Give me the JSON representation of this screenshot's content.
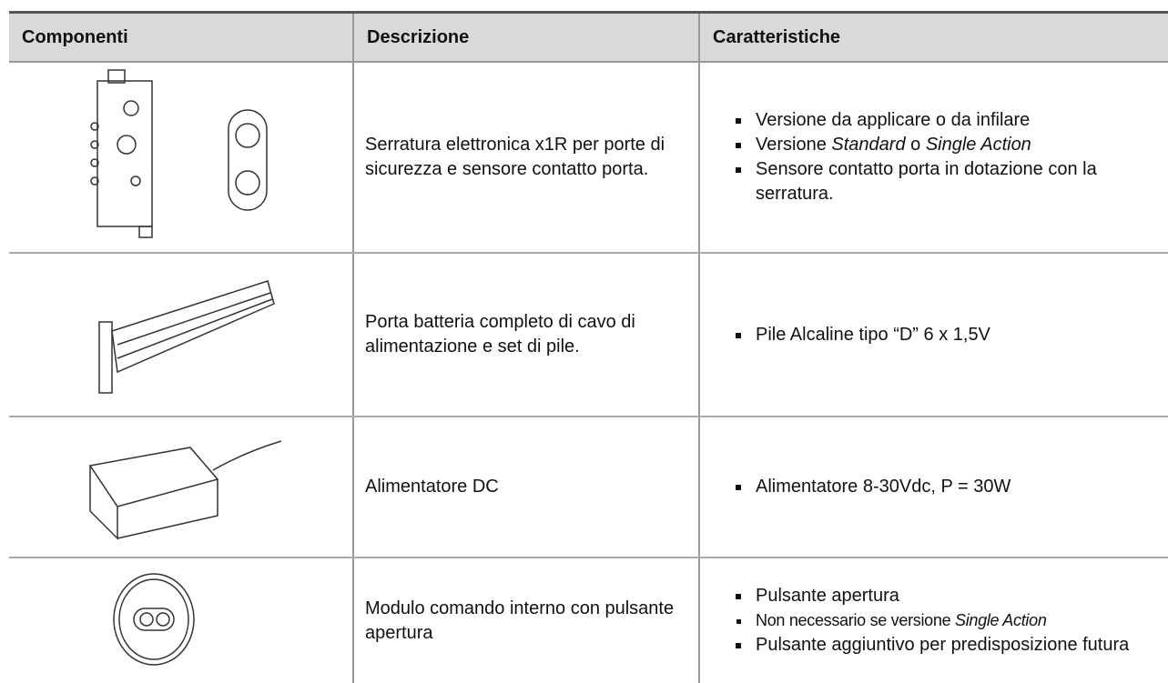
{
  "table": {
    "header": [
      "Componenti",
      "Descrizione",
      "Caratteristiche"
    ],
    "rows": [
      {
        "description": "Serratura elettronica x1R per porte di sicurezza e sensore contatto porta.",
        "features": [
          [
            "Versione da applicare o da infilare"
          ],
          [
            "Versione ",
            "Standard",
            " o ",
            "Single Action"
          ],
          [
            "Sensore contatto porta in dotazione con la serratura."
          ]
        ]
      },
      {
        "description": "Porta batteria completo di cavo di alimentazione e set di pile.",
        "features": [
          [
            "Pile Alcaline tipo “D” 6 x 1,5V"
          ]
        ]
      },
      {
        "description": "Alimentatore DC",
        "features": [
          [
            "Alimentatore 8-30Vdc, P = 30W"
          ]
        ]
      },
      {
        "description": "Modulo comando interno con pulsante apertura",
        "features": [
          [
            "Pulsante apertura"
          ],
          [
            "Non necessario se versione ",
            "Single Action"
          ],
          [
            "Pulsante aggiuntivo per predisposizione futura"
          ]
        ]
      }
    ]
  }
}
